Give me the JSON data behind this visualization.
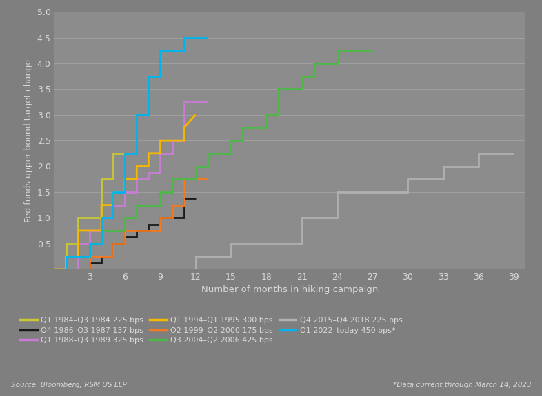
{
  "background_color": "#7f7f7f",
  "plot_bg_color": "#8c8c8c",
  "grid_color": "#a0a0a0",
  "text_color": "#d8d8d8",
  "xlabel": "Number of months in hiking campaign",
  "ylabel": "Fed funds upper bound target change",
  "ylim": [
    0,
    5.0
  ],
  "xlim": [
    0,
    40
  ],
  "yticks": [
    0.5,
    1.0,
    1.5,
    2.0,
    2.5,
    3.0,
    3.5,
    4.0,
    4.5,
    5.0
  ],
  "xticks": [
    3,
    6,
    9,
    12,
    15,
    18,
    21,
    24,
    27,
    30,
    33,
    36,
    39
  ],
  "source_text": "Source: Bloomberg; RSM US LLP",
  "note_text": "*Data current through March 14, 2023",
  "series": [
    {
      "label": "Q1 1984–Q3 1984 225 bps",
      "color": "#c8c832",
      "x": [
        0,
        1,
        1,
        2,
        2,
        3,
        3,
        4,
        4,
        5,
        5,
        6
      ],
      "y": [
        0,
        0,
        0.5,
        0.5,
        1.0,
        1.0,
        1.0,
        1.0,
        1.75,
        1.75,
        2.25,
        2.25
      ]
    },
    {
      "label": "Q4 1986–Q3 1987 137 bps",
      "color": "#1a1a1a",
      "x": [
        0,
        3,
        3,
        4,
        4,
        5,
        5,
        6,
        6,
        7,
        7,
        8,
        8,
        9,
        9,
        10,
        10,
        11,
        11,
        12
      ],
      "y": [
        0,
        0,
        0.125,
        0.125,
        0.25,
        0.25,
        0.5,
        0.5,
        0.625,
        0.625,
        0.75,
        0.75,
        0.875,
        0.875,
        1.0,
        1.0,
        1.0,
        1.0,
        1.375,
        1.375
      ]
    },
    {
      "label": "Q1 1988–Q3 1989 325 bps",
      "color": "#c87dd4",
      "x": [
        0,
        2,
        2,
        3,
        3,
        4,
        4,
        5,
        5,
        6,
        6,
        7,
        7,
        8,
        8,
        9,
        9,
        10,
        10,
        11,
        11,
        12,
        12,
        13
      ],
      "y": [
        0,
        0,
        0.5,
        0.5,
        0.75,
        0.75,
        1.0,
        1.0,
        1.25,
        1.25,
        1.5,
        1.5,
        1.75,
        1.75,
        1.875,
        1.875,
        2.25,
        2.25,
        2.5,
        2.5,
        3.25,
        3.25,
        3.25,
        3.25
      ]
    },
    {
      "label": "Q1 1994–Q1 1995 300 bps",
      "color": "#f5b800",
      "x": [
        0,
        1,
        1,
        2,
        2,
        3,
        3,
        4,
        4,
        5,
        5,
        6,
        6,
        7,
        7,
        8,
        8,
        9,
        9,
        10,
        10,
        11,
        11,
        12
      ],
      "y": [
        0,
        0,
        0.25,
        0.25,
        0.75,
        0.75,
        0.75,
        0.75,
        1.25,
        1.25,
        1.5,
        1.5,
        1.75,
        1.75,
        2.0,
        2.0,
        2.25,
        2.25,
        2.5,
        2.5,
        2.5,
        2.5,
        2.75,
        3.0
      ]
    },
    {
      "label": "Q2 1999–Q2 2000 175 bps",
      "color": "#f47920",
      "x": [
        0,
        3,
        3,
        5,
        5,
        6,
        6,
        7,
        7,
        9,
        9,
        10,
        10,
        11,
        11,
        12,
        12,
        13
      ],
      "y": [
        0,
        0,
        0.25,
        0.25,
        0.5,
        0.5,
        0.75,
        0.75,
        0.75,
        0.75,
        1.0,
        1.0,
        1.25,
        1.25,
        1.75,
        1.75,
        1.75,
        1.75
      ]
    },
    {
      "label": "Q3 2004–Q2 2006 425 bps",
      "color": "#4db848",
      "x": [
        0,
        1,
        1,
        3,
        3,
        4,
        4,
        6,
        6,
        7,
        7,
        9,
        9,
        10,
        10,
        12,
        12,
        13,
        13,
        15,
        15,
        16,
        16,
        18,
        18,
        19,
        19,
        21,
        21,
        22,
        22,
        24,
        24,
        25,
        25,
        27
      ],
      "y": [
        0,
        0,
        0.25,
        0.25,
        0.5,
        0.5,
        0.75,
        0.75,
        1.0,
        1.0,
        1.25,
        1.25,
        1.5,
        1.5,
        1.75,
        1.75,
        2.0,
        2.0,
        2.25,
        2.25,
        2.5,
        2.5,
        2.75,
        2.75,
        3.0,
        3.0,
        3.5,
        3.5,
        3.75,
        3.75,
        4.0,
        4.0,
        4.25,
        4.25,
        4.25,
        4.25
      ]
    },
    {
      "label": "Q4 2015–Q4 2018 225 bps",
      "color": "#b0b0b0",
      "x": [
        0,
        12,
        12,
        15,
        15,
        21,
        21,
        24,
        24,
        30,
        30,
        33,
        33,
        36,
        36,
        39
      ],
      "y": [
        0,
        0,
        0.25,
        0.25,
        0.5,
        0.5,
        1.0,
        1.0,
        1.5,
        1.5,
        1.75,
        1.75,
        2.0,
        2.0,
        2.25,
        2.25
      ]
    },
    {
      "label": "Q1 2022–today 450 bps*",
      "color": "#00b4f0",
      "x": [
        0,
        1,
        1,
        3,
        3,
        4,
        4,
        5,
        5,
        6,
        6,
        7,
        7,
        8,
        8,
        9,
        9,
        11,
        11,
        12,
        12,
        13
      ],
      "y": [
        0,
        0,
        0.25,
        0.25,
        0.5,
        0.5,
        1.0,
        1.0,
        1.5,
        1.5,
        2.25,
        2.25,
        3.0,
        3.0,
        3.75,
        3.75,
        4.25,
        4.25,
        4.5,
        4.5,
        4.5,
        4.5
      ]
    }
  ],
  "legend_order": [
    0,
    1,
    2,
    3,
    4,
    5,
    6,
    7
  ]
}
